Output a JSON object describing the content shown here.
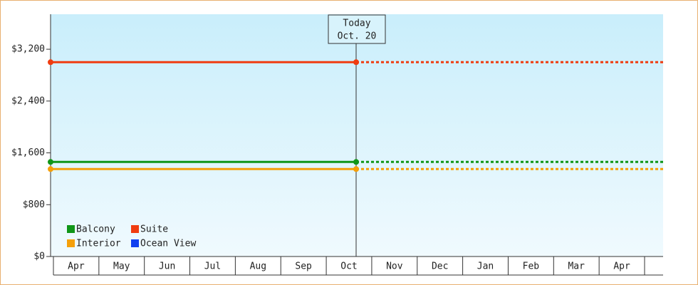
{
  "chart_data": {
    "type": "line",
    "categories": [
      "Apr",
      "May",
      "Jun",
      "Jul",
      "Aug",
      "Sep",
      "Oct",
      "Nov",
      "Dec",
      "Jan",
      "Feb",
      "Mar",
      "Apr"
    ],
    "today_label": [
      "Today",
      "Oct. 20"
    ],
    "series": [
      {
        "name": "Balcony",
        "color": "#109618",
        "value": 1460
      },
      {
        "name": "Suite",
        "color": "#f03c10",
        "value": 3000
      },
      {
        "name": "Interior",
        "color": "#f5a00a",
        "value": 1350
      },
      {
        "name": "Ocean View",
        "color": "#1040f0",
        "value": null
      }
    ],
    "ylim": [
      0,
      3740
    ],
    "yticks": [
      {
        "value": 0,
        "label": "$0"
      },
      {
        "value": 800,
        "label": "$800"
      },
      {
        "value": 1600,
        "label": "$1,600"
      },
      {
        "value": 2400,
        "label": "$2,400"
      },
      {
        "value": 3200,
        "label": "$3,200"
      }
    ]
  }
}
